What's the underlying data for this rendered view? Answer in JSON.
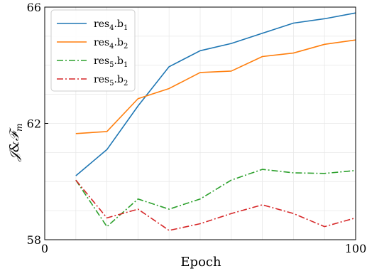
{
  "chart_data": {
    "type": "line",
    "xlabel": "Epoch",
    "ylabel": "J&F_m",
    "xlim": [
      0,
      100
    ],
    "ylim": [
      58,
      66
    ],
    "xticks": [
      0,
      100
    ],
    "yticks": [
      58,
      62,
      66
    ],
    "grid": true,
    "legend_position": "top-left",
    "x": [
      10,
      20,
      30,
      40,
      50,
      60,
      70,
      80,
      90,
      100
    ],
    "series": [
      {
        "name": "res4.b1",
        "base": "res",
        "sub1": "4",
        "mid": ".b",
        "sub2": "1",
        "color": "#1f77b4",
        "style": "solid",
        "values": [
          60.2,
          61.1,
          62.6,
          63.95,
          64.5,
          64.75,
          65.1,
          65.45,
          65.6,
          65.8
        ]
      },
      {
        "name": "res4.b2",
        "base": "res",
        "sub1": "4",
        "mid": ".b",
        "sub2": "2",
        "color": "#ff7f0e",
        "style": "solid",
        "values": [
          61.65,
          61.72,
          62.85,
          63.2,
          63.75,
          63.8,
          64.3,
          64.42,
          64.72,
          64.87
        ]
      },
      {
        "name": "res5.b1",
        "base": "res",
        "sub1": "5",
        "mid": ".b",
        "sub2": "1",
        "color": "#2ca02c",
        "style": "dashdot",
        "values": [
          60.05,
          58.45,
          59.4,
          59.05,
          59.4,
          60.05,
          60.42,
          60.3,
          60.28,
          60.38
        ]
      },
      {
        "name": "res5.b2",
        "base": "res",
        "sub1": "5",
        "mid": ".b",
        "sub2": "2",
        "color": "#d62728",
        "style": "dashdot",
        "values": [
          60.05,
          58.75,
          59.05,
          58.32,
          58.55,
          58.9,
          59.2,
          58.9,
          58.45,
          58.75
        ]
      }
    ]
  }
}
